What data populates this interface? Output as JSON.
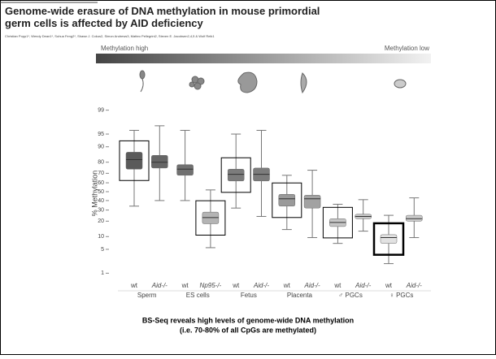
{
  "chart_data": {
    "type": "box",
    "title": "Genome-wide erasure of DNA methylation in mouse primordial germ cells is affected by AID deficiency",
    "subtitle": "Christian Popp1*, Wendy Dean1*, Suhua Feng2*, Shawn J. Cokus2, Simon Andrews3, Matteo Pellegrini2, Steven E. Jacobsen2,4,5 & Wolf Reik1",
    "gradient_labels": [
      "Methylation high",
      "Methylation low"
    ],
    "ylabel": "% Methylation",
    "scale": "probit",
    "ylim": [
      0.7,
      99.3
    ],
    "yticks": [
      1,
      5,
      10,
      20,
      30,
      40,
      50,
      60,
      70,
      80,
      90,
      95,
      99
    ],
    "groups": [
      "Sperm",
      "ES cells",
      "Fetus",
      "Placenta",
      "♂ PGCs",
      "♀ PGCs"
    ],
    "categories": [
      "wt",
      "Aid-/-",
      "wt",
      "Np95-/-",
      "wt",
      "Aid-/-",
      "wt",
      "Aid-/-",
      "wt",
      "Aid-/-",
      "wt",
      "Aid-/-"
    ],
    "colors": [
      "#5a5a5a",
      "#666666",
      "#707070",
      "#b4b4b4",
      "#7c7c7c",
      "#7c7c7c",
      "#9a9a9a",
      "#a2a2a2",
      "#c6c6c6",
      "#c6c6c6",
      "#e2e2e2",
      "#cccccc"
    ],
    "whisker_low": [
      34,
      40,
      40,
      5.5,
      32,
      24,
      14,
      9.5,
      7,
      13,
      2,
      9.5
    ],
    "q1": [
      74,
      75,
      68,
      18,
      62,
      62,
      34,
      32,
      16,
      22,
      7,
      20
    ],
    "median": [
      82,
      80,
      74,
      23,
      69,
      69,
      42,
      42,
      19,
      24,
      9.5,
      22
    ],
    "q3": [
      87,
      85,
      78,
      28,
      74,
      75,
      47,
      46,
      22,
      26,
      11,
      25
    ],
    "whisker_high": [
      96,
      97,
      96,
      52,
      95,
      96,
      68,
      73,
      36,
      41,
      25,
      43
    ],
    "caption": [
      "BS-Seq reveals high levels of genome-wide DNA methylation",
      "(i.e. 70-80% of all CpGs are methylated)"
    ]
  }
}
